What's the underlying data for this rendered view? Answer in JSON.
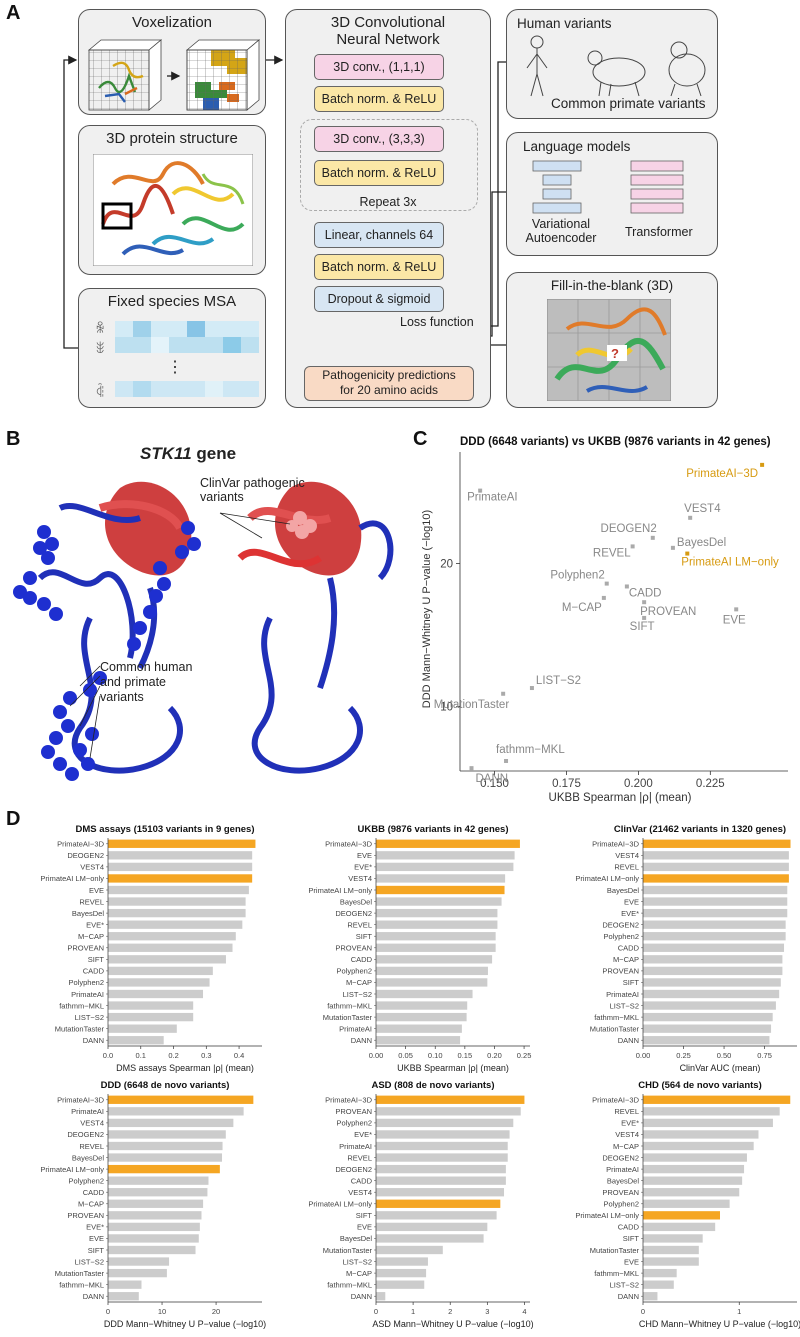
{
  "panel_labels": {
    "a": "A",
    "b": "B",
    "c": "C",
    "d": "D"
  },
  "panel_a": {
    "voxelization": {
      "title": "Voxelization"
    },
    "protein": {
      "title": "3D protein structure"
    },
    "msa": {
      "title": "Fixed species MSA",
      "ellipsis": "⋮"
    },
    "cnn": {
      "title_line1": "3D Convolutional",
      "title_line2": "Neural Network",
      "layers": [
        "3D conv., (1,1,1)",
        "Batch norm. & ReLU",
        "3D conv., (3,3,3)",
        "Batch norm. & ReLU",
        "Linear, channels 64",
        "Batch norm. & ReLU",
        "Dropout & sigmoid"
      ],
      "repeat": "Repeat 3x",
      "loss": "Loss function",
      "output_line1": "Pathogenicity predictions",
      "output_line2": "for 20 amino acids"
    },
    "human_variants": {
      "title": "Human variants",
      "subtitle": "Common primate variants"
    },
    "language_models": {
      "title": "Language models",
      "vae_line1": "Variational",
      "vae_line2": "Autoencoder",
      "transformer": "Transformer"
    },
    "fill_blank": {
      "title": "Fill-in-the-blank (3D)"
    },
    "colors": {
      "pink": "#f7d3e6",
      "yellow": "#fbe7a6",
      "blue": "#d8e6f3",
      "peach": "#f9dac5",
      "box_gray": "#f0f0f0"
    }
  },
  "panel_b": {
    "title_italic": "STK11",
    "title_rest": " gene",
    "clinvar_line1": "ClinVar pathogenic",
    "clinvar_line2": "variants",
    "common_line1": "Common human",
    "common_line2": "and primate",
    "common_line3": "variants"
  },
  "chart_data": [
    {
      "id": "C",
      "type": "scatter",
      "title": "DDD (6648 variants) vs UKBB (9876 variants in 42 genes)",
      "xlabel": "UKBB Spearman |ρ| (mean)",
      "ylabel": "DDD Mann−Whitney U P−value (−log10)",
      "xlim": [
        0.138,
        0.252
      ],
      "ylim": [
        5.5,
        27.8
      ],
      "xticks": [
        0.15,
        0.175,
        0.2,
        0.225
      ],
      "xtick_labels": [
        "0.150",
        "0.175",
        "0.200",
        "0.225"
      ],
      "yticks": [
        10,
        20
      ],
      "ytick_labels": [
        "10",
        "20"
      ],
      "highlight_color": "#d79b12",
      "point_color": "#aaaaaa",
      "points": [
        {
          "label": "PrimateAI−3D",
          "x": 0.243,
          "y": 26.9,
          "highlight": true
        },
        {
          "label": "PrimateAI",
          "x": 0.145,
          "y": 25.1,
          "highlight": false
        },
        {
          "label": "VEST4",
          "x": 0.218,
          "y": 23.2,
          "highlight": false
        },
        {
          "label": "DEOGEN2",
          "x": 0.205,
          "y": 21.8,
          "highlight": false
        },
        {
          "label": "REVEL",
          "x": 0.198,
          "y": 21.2,
          "highlight": false
        },
        {
          "label": "BayesDel",
          "x": 0.212,
          "y": 21.1,
          "highlight": false
        },
        {
          "label": "PrimateAI LM−only",
          "x": 0.217,
          "y": 20.7,
          "highlight": true
        },
        {
          "label": "Polyphen2",
          "x": 0.189,
          "y": 18.6,
          "highlight": false
        },
        {
          "label": "CADD",
          "x": 0.196,
          "y": 18.4,
          "highlight": false
        },
        {
          "label": "M−CAP",
          "x": 0.188,
          "y": 17.6,
          "highlight": false
        },
        {
          "label": "PROVEAN",
          "x": 0.202,
          "y": 17.3,
          "highlight": false
        },
        {
          "label": "SIFT",
          "x": 0.202,
          "y": 16.2,
          "highlight": false
        },
        {
          "label": "EVE",
          "x": 0.234,
          "y": 16.8,
          "highlight": false
        },
        {
          "label": "LIST−S2",
          "x": 0.163,
          "y": 11.3,
          "highlight": false
        },
        {
          "label": "MutationTaster",
          "x": 0.153,
          "y": 10.9,
          "highlight": false
        },
        {
          "label": "fathmm−MKL",
          "x": 0.154,
          "y": 6.2,
          "highlight": false
        },
        {
          "label": "DANN",
          "x": 0.142,
          "y": 5.7,
          "highlight": false
        }
      ]
    },
    {
      "id": "D1",
      "type": "bar",
      "orientation": "horizontal",
      "title": "DMS assays (15103 variants in 9 genes)",
      "xlabel": "DMS assays Spearman |ρ| (mean)",
      "xlim": [
        0,
        0.47
      ],
      "xticks": [
        0,
        0.1,
        0.2,
        0.3,
        0.4
      ],
      "xtick_labels": [
        "0.0",
        "0.1",
        "0.2",
        "0.3",
        "0.4"
      ],
      "categories": [
        "PrimateAI−3D",
        "DEOGEN2",
        "VEST4",
        "PrimateAI LM−only",
        "EVE",
        "REVEL",
        "BayesDel",
        "EVE*",
        "M−CAP",
        "PROVEAN",
        "SIFT",
        "CADD",
        "Polyphen2",
        "PrimateAI",
        "fathmm−MKL",
        "LIST−S2",
        "MutationTaster",
        "DANN"
      ],
      "values": [
        0.45,
        0.44,
        0.44,
        0.44,
        0.43,
        0.42,
        0.42,
        0.41,
        0.39,
        0.38,
        0.36,
        0.32,
        0.31,
        0.29,
        0.26,
        0.26,
        0.21,
        0.17
      ],
      "highlight": [
        "PrimateAI−3D",
        "PrimateAI LM−only"
      ]
    },
    {
      "id": "D2",
      "type": "bar",
      "orientation": "horizontal",
      "title": "UKBB (9876 variants in 42 genes)",
      "xlabel": "UKBB Spearman |ρ| (mean)",
      "xlim": [
        0,
        0.26
      ],
      "xticks": [
        0,
        0.05,
        0.1,
        0.15,
        0.2,
        0.25
      ],
      "xtick_labels": [
        "0.00",
        "0.05",
        "0.10",
        "0.15",
        "0.20",
        "0.25"
      ],
      "categories": [
        "PrimateAI−3D",
        "EVE",
        "EVE*",
        "VEST4",
        "PrimateAI LM−only",
        "BayesDel",
        "DEOGEN2",
        "REVEL",
        "SIFT",
        "PROVEAN",
        "CADD",
        "Polyphen2",
        "M−CAP",
        "LIST−S2",
        "fathmm−MKL",
        "MutationTaster",
        "PrimateAI",
        "DANN"
      ],
      "values": [
        0.243,
        0.234,
        0.232,
        0.218,
        0.217,
        0.212,
        0.205,
        0.205,
        0.202,
        0.202,
        0.196,
        0.189,
        0.188,
        0.163,
        0.154,
        0.153,
        0.145,
        0.142
      ],
      "highlight": [
        "PrimateAI−3D",
        "PrimateAI LM−only"
      ]
    },
    {
      "id": "D3",
      "type": "bar",
      "orientation": "horizontal",
      "title": "ClinVar (21462 variants in 1320 genes)",
      "xlabel": "ClinVar AUC (mean)",
      "xlim": [
        0,
        0.95
      ],
      "xticks": [
        0,
        0.25,
        0.5,
        0.75
      ],
      "xtick_labels": [
        "0.00",
        "0.25",
        "0.50",
        "0.75"
      ],
      "categories": [
        "PrimateAI−3D",
        "VEST4",
        "REVEL",
        "PrimateAI LM−only",
        "BayesDel",
        "EVE",
        "EVE*",
        "DEOGEN2",
        "Polyphen2",
        "CADD",
        "M−CAP",
        "PROVEAN",
        "SIFT",
        "PrimateAI",
        "LIST−S2",
        "fathmm−MKL",
        "MutationTaster",
        "DANN"
      ],
      "values": [
        0.91,
        0.9,
        0.9,
        0.9,
        0.89,
        0.89,
        0.89,
        0.88,
        0.88,
        0.87,
        0.86,
        0.86,
        0.85,
        0.84,
        0.82,
        0.8,
        0.79,
        0.78
      ],
      "highlight": [
        "PrimateAI−3D",
        "PrimateAI LM−only"
      ]
    },
    {
      "id": "D4",
      "type": "bar",
      "orientation": "horizontal",
      "title": "DDD (6648 de novo variants)",
      "xlabel": "DDD Mann−Whitney U P−value (−log10)",
      "xlim": [
        0,
        28.5
      ],
      "xticks": [
        0,
        10,
        20
      ],
      "xtick_labels": [
        "0",
        "10",
        "20"
      ],
      "categories": [
        "PrimateAI−3D",
        "PrimateAI",
        "VEST4",
        "DEOGEN2",
        "REVEL",
        "BayesDel",
        "PrimateAI LM−only",
        "Polyphen2",
        "CADD",
        "M−CAP",
        "PROVEAN",
        "EVE*",
        "EVE",
        "SIFT",
        "LIST−S2",
        "MutationTaster",
        "fathmm−MKL",
        "DANN"
      ],
      "values": [
        26.9,
        25.1,
        23.2,
        21.8,
        21.2,
        21.1,
        20.7,
        18.6,
        18.4,
        17.6,
        17.3,
        17.0,
        16.8,
        16.2,
        11.3,
        10.9,
        6.2,
        5.7
      ],
      "highlight": [
        "PrimateAI−3D",
        "PrimateAI LM−only"
      ]
    },
    {
      "id": "D5",
      "type": "bar",
      "orientation": "horizontal",
      "title": "ASD (808 de novo variants)",
      "xlabel": "ASD Mann−Whitney U P−value (−log10)",
      "xlim": [
        0,
        4.15
      ],
      "xticks": [
        0,
        1,
        2,
        3,
        4
      ],
      "xtick_labels": [
        "0",
        "1",
        "2",
        "3",
        "4"
      ],
      "categories": [
        "PrimateAI−3D",
        "PROVEAN",
        "Polyphen2",
        "EVE*",
        "PrimateAI",
        "REVEL",
        "DEOGEN2",
        "CADD",
        "VEST4",
        "PrimateAI LM−only",
        "SIFT",
        "EVE",
        "BayesDel",
        "MutationTaster",
        "LIST−S2",
        "M−CAP",
        "fathmm−MKL",
        "DANN"
      ],
      "values": [
        4.0,
        3.9,
        3.7,
        3.6,
        3.55,
        3.55,
        3.5,
        3.5,
        3.45,
        3.35,
        3.25,
        3.0,
        2.9,
        1.8,
        1.4,
        1.35,
        1.3,
        0.25
      ],
      "highlight": [
        "PrimateAI−3D",
        "PrimateAI LM−only"
      ]
    },
    {
      "id": "D6",
      "type": "bar",
      "orientation": "horizontal",
      "title": "CHD (564 de novo variants)",
      "xlabel": "CHD Mann−Whitney U P−value (−log10)",
      "xlim": [
        0,
        1.6
      ],
      "xticks": [
        0,
        1
      ],
      "xtick_labels": [
        "0",
        "1"
      ],
      "categories": [
        "PrimateAI−3D",
        "REVEL",
        "EVE*",
        "VEST4",
        "M−CAP",
        "DEOGEN2",
        "PrimateAI",
        "BayesDel",
        "PROVEAN",
        "Polyphen2",
        "PrimateAI LM−only",
        "CADD",
        "SIFT",
        "MutationTaster",
        "EVE",
        "fathmm−MKL",
        "LIST−S2",
        "DANN"
      ],
      "values": [
        1.53,
        1.42,
        1.35,
        1.2,
        1.15,
        1.08,
        1.05,
        1.03,
        1.0,
        0.9,
        0.8,
        0.75,
        0.62,
        0.58,
        0.58,
        0.35,
        0.32,
        0.15
      ],
      "highlight": [
        "PrimateAI−3D",
        "PrimateAI LM−only"
      ]
    }
  ]
}
